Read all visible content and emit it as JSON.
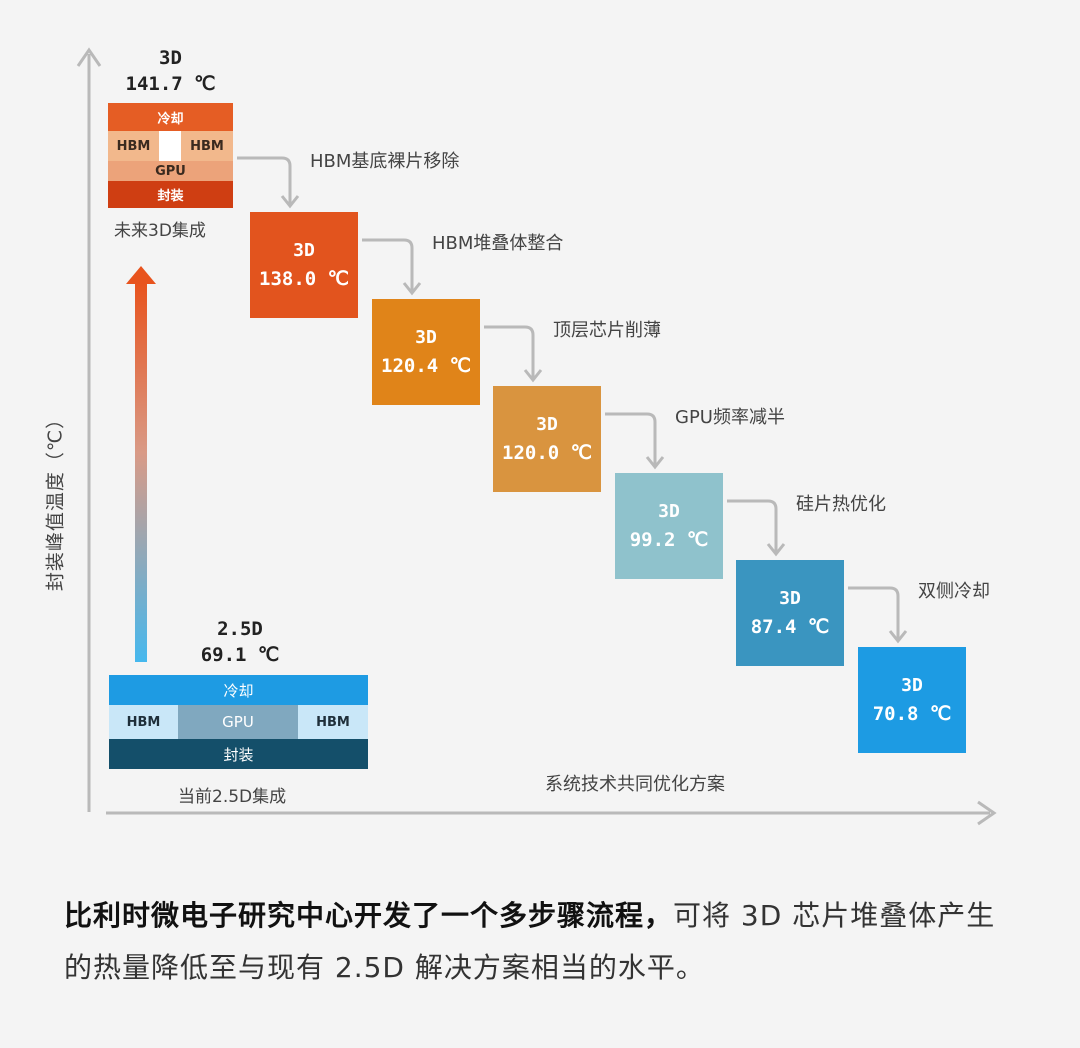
{
  "axes": {
    "y_label": "封装峰值温度（℃）",
    "x_label": "系统技术共同优化方案"
  },
  "future_3d": {
    "type": "3D",
    "temp": "141.7 ℃",
    "layers": {
      "cooling": "冷却",
      "hbm_left": "HBM",
      "hbm_right": "HBM",
      "gpu": "GPU",
      "package": "封装"
    },
    "caption": "未来3D集成"
  },
  "current_25d": {
    "type": "2.5D",
    "temp": "69.1 ℃",
    "layers": {
      "cooling": "冷却",
      "hbm_left": "HBM",
      "gpu": "GPU",
      "hbm_right": "HBM",
      "package": "封装"
    },
    "caption": "当前2.5D集成"
  },
  "steps": [
    {
      "type": "3D",
      "temp": "138.0 ℃",
      "label": "HBM基底裸片移除",
      "color": "#e2541e"
    },
    {
      "type": "3D",
      "temp": "120.4 ℃",
      "label": "HBM堆叠体整合",
      "color": "#e08419"
    },
    {
      "type": "3D",
      "temp": "120.0 ℃",
      "label": "顶层芯片削薄",
      "color": "#d9943f"
    },
    {
      "type": "3D",
      "temp": "99.2 ℃",
      "label": "GPU频率减半",
      "color": "#8fc2cc"
    },
    {
      "type": "3D",
      "temp": "87.4 ℃",
      "label": "硅片热优化",
      "color": "#3a95c0"
    },
    {
      "type": "3D",
      "temp": "70.8 ℃",
      "label": "双侧冷却",
      "color": "#1d9be3"
    }
  ],
  "description": {
    "bold": "比利时微电子研究中心开发了一个多步骤流程，",
    "normal": "可将 3D 芯片堆叠体产生的热量降低至与现有 2.5D 解决方案相当的水平。"
  }
}
